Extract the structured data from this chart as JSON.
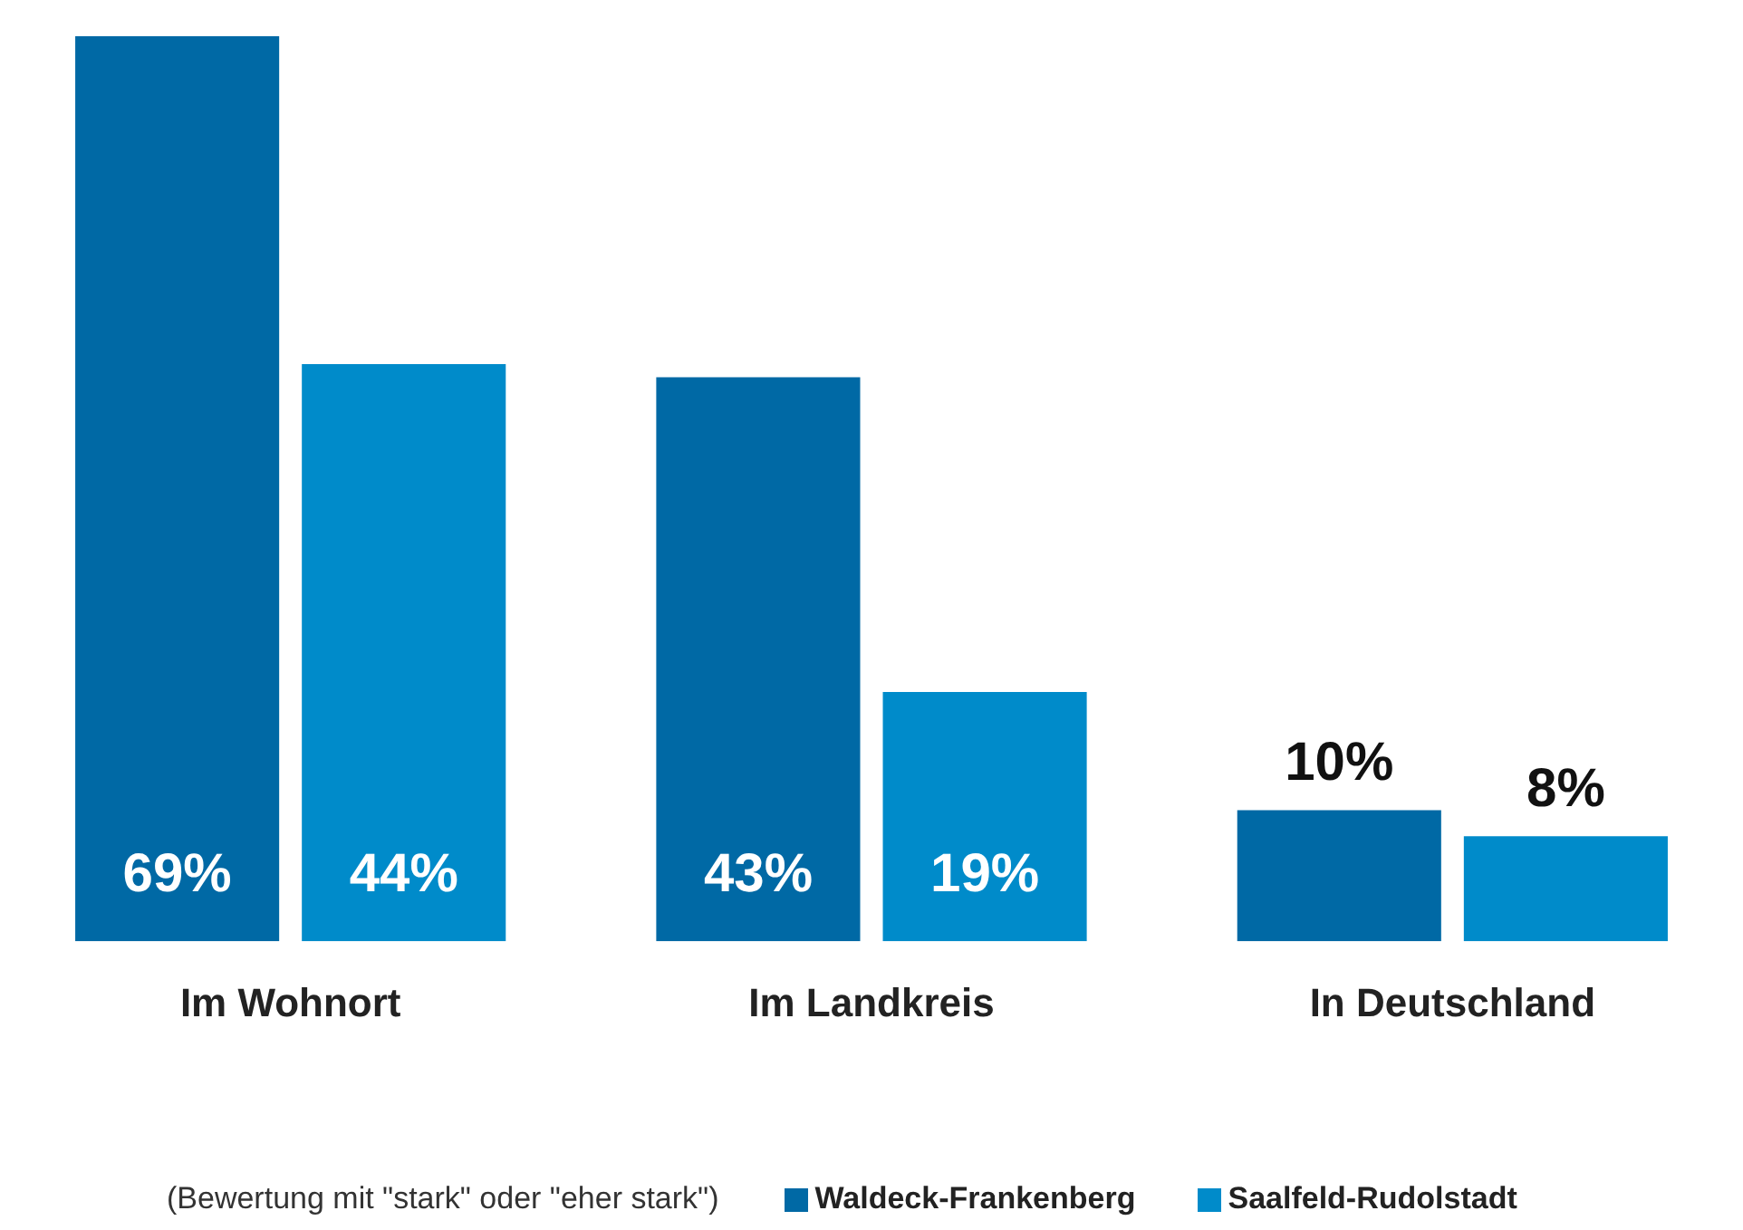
{
  "chart_data": {
    "type": "bar",
    "categories": [
      "Im Wohnort",
      "Im Landkreis",
      "In Deutschland"
    ],
    "series": [
      {
        "name": "Waldeck-Frankenberg",
        "color": "#0069a5",
        "values": [
          69,
          43,
          10
        ],
        "value_labels": [
          "69%",
          "43%",
          "10%"
        ]
      },
      {
        "name": "Saalfeld-Rudolstadt",
        "color": "#008bca",
        "values": [
          44,
          19,
          8
        ],
        "value_labels": [
          "44%",
          "19%",
          "8%"
        ]
      }
    ],
    "legend": "bottom right",
    "grid": false,
    "tick_labels": "x",
    "annotations": [
      "(Bewertung mit \"stark\" oder \"eher stark\")"
    ]
  }
}
